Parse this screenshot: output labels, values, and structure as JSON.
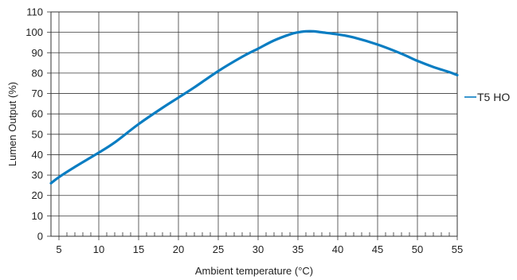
{
  "chart_data": {
    "type": "line",
    "xlabel": "Ambient temperature (°C)",
    "ylabel": "Lumen Output (%)",
    "xlim": [
      4,
      55
    ],
    "ylim": [
      0,
      110
    ],
    "x_ticks": [
      5,
      10,
      15,
      20,
      25,
      30,
      35,
      40,
      45,
      50,
      55
    ],
    "y_ticks": [
      0,
      10,
      20,
      30,
      40,
      50,
      60,
      70,
      80,
      90,
      100,
      110
    ],
    "x_minor_step": 1,
    "grid": true,
    "legend_position": "right",
    "series": [
      {
        "name": "T5 HO",
        "color": "#0a7dc2",
        "x": [
          4,
          5,
          7,
          10,
          12,
          15,
          18,
          20,
          22,
          25,
          28,
          30,
          32,
          34,
          35,
          36,
          37,
          38,
          40,
          42,
          45,
          48,
          50,
          52,
          54,
          55
        ],
        "y": [
          26,
          29,
          34,
          41,
          46,
          55,
          63,
          68,
          73,
          81,
          88,
          92,
          96,
          99,
          100,
          100.5,
          100.5,
          100,
          99,
          97.5,
          94,
          89.5,
          86,
          83,
          80.5,
          79
        ]
      }
    ]
  }
}
